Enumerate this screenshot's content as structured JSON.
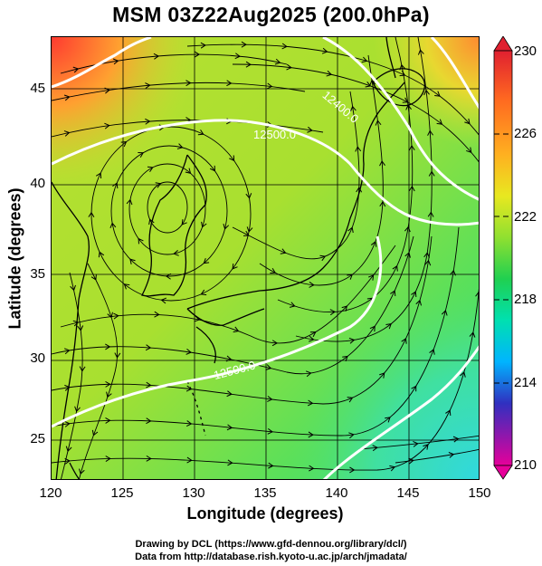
{
  "title": "MSM 03Z22Aug2025 (200.0hPa)",
  "xlabel": "Longitude (degrees)",
  "ylabel": "Latitude  (degrees)",
  "x_ticks": [
    "120",
    "125",
    "130",
    "135",
    "140",
    "145",
    "150"
  ],
  "y_ticks": [
    "25",
    "30",
    "35",
    "40",
    "45"
  ],
  "colorbar": {
    "labels": [
      "230",
      "226",
      "222",
      "218",
      "214",
      "210"
    ],
    "range": [
      210,
      230
    ],
    "colors": [
      "#e6009a",
      "#3030c0",
      "#00b4ff",
      "#00e0b0",
      "#20d050",
      "#90e030",
      "#e8e820",
      "#ffb020",
      "#ff5020",
      "#e02030"
    ]
  },
  "contours": {
    "color": "#ffffff",
    "labels": [
      "12400.0",
      "12500.0",
      "12500.0"
    ]
  },
  "credits": {
    "line1": "Drawing by DCL (https://www.gfd-dennou.org/library/dcl/)",
    "line2": "Data from http://database.rish.kyoto-u.ac.jp/arch/jmadata/"
  },
  "map_extent": {
    "lon": [
      120,
      150
    ],
    "lat": [
      22.5,
      48
    ]
  }
}
